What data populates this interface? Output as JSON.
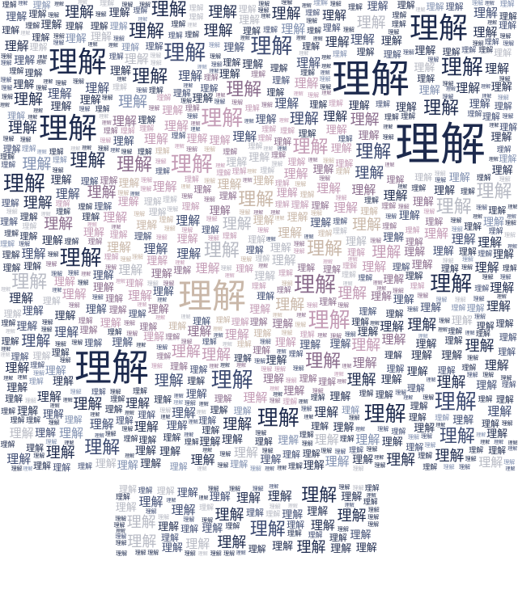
{
  "word": "理解",
  "palette": {
    "dark": "#1d2a4d",
    "mid": "#3d4b72",
    "mauve": "#8a6c8c",
    "pink": "#c39bb5",
    "tan": "#c9b7a8",
    "grey": "#b7bac4",
    "steel": "#7f8fb0"
  }
}
